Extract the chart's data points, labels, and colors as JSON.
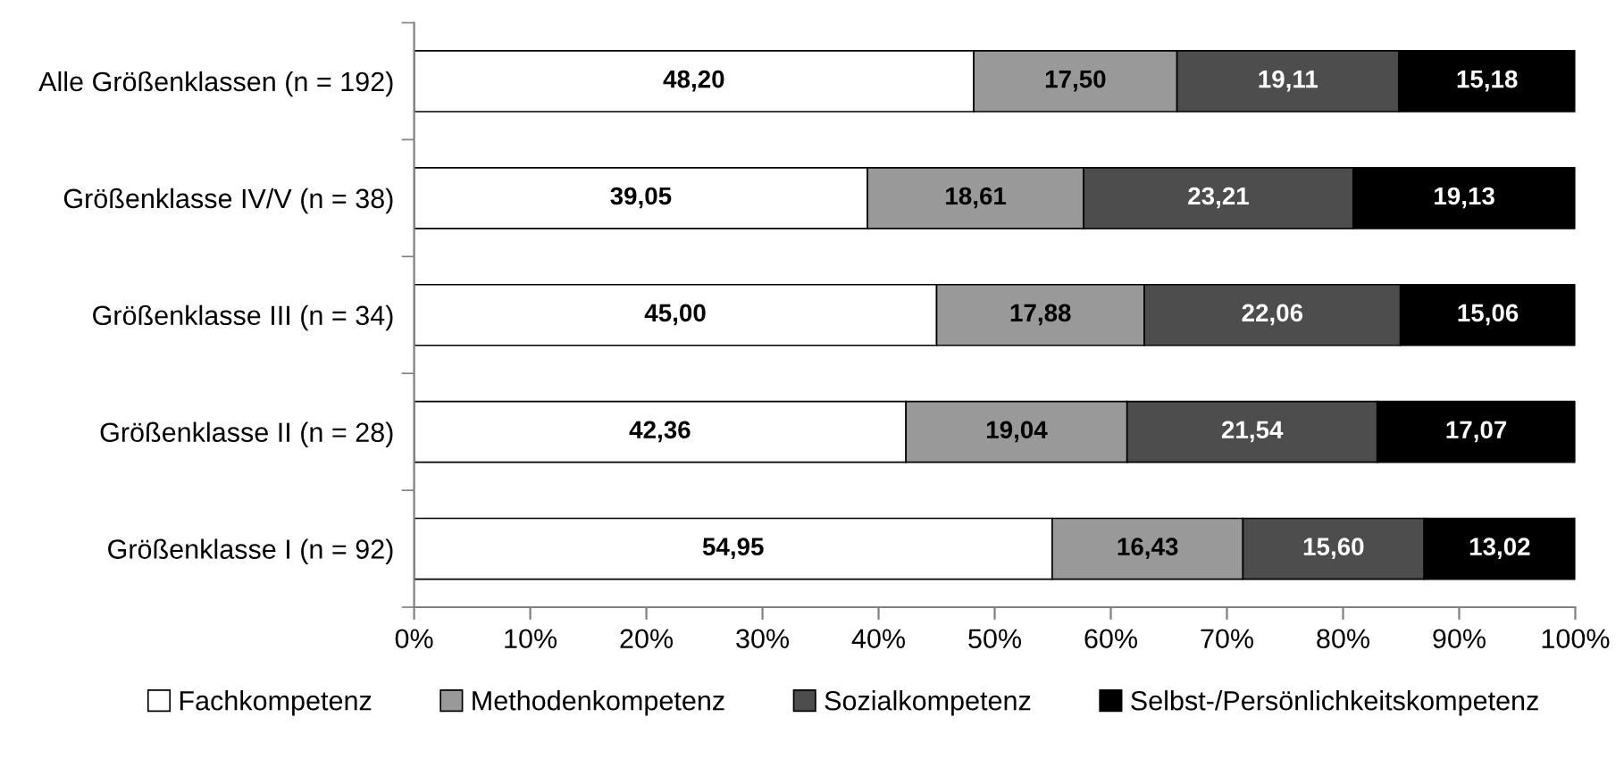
{
  "chart_data": {
    "type": "bar",
    "orientation": "horizontal",
    "stacked": true,
    "categories": [
      "Alle Größenklassen (n = 192)",
      "Größenklasse IV/V (n = 38)",
      "Größenklasse III (n = 34)",
      "Größenklasse II (n = 28)",
      "Größenklasse I (n = 92)"
    ],
    "series": [
      {
        "name": "Fachkompetenz",
        "color": "#ffffff",
        "values": [
          48.2,
          39.05,
          45.0,
          42.36,
          54.95
        ],
        "value_labels": [
          "48,20",
          "39,05",
          "45,00",
          "42,36",
          "54,95"
        ]
      },
      {
        "name": "Methodenkompetenz",
        "color": "#999999",
        "values": [
          17.5,
          18.61,
          17.88,
          19.04,
          16.43
        ],
        "value_labels": [
          "17,50",
          "18,61",
          "17,88",
          "19,04",
          "16,43"
        ]
      },
      {
        "name": "Sozialkompetenz",
        "color": "#4d4d4d",
        "values": [
          19.11,
          23.21,
          22.06,
          21.54,
          15.6
        ],
        "value_labels": [
          "19,11",
          "23,21",
          "22,06",
          "21,54",
          "15,60"
        ]
      },
      {
        "name": "Selbst-/Persönlichkeitskompetenz",
        "color": "#000000",
        "values": [
          15.18,
          19.13,
          15.06,
          17.07,
          13.02
        ],
        "value_labels": [
          "15,18",
          "19,13",
          "15,06",
          "17,07",
          "13,02"
        ]
      }
    ],
    "xlim": [
      0,
      100
    ],
    "xticks": [
      {
        "value": 0,
        "label": "0%"
      },
      {
        "value": 10,
        "label": "10%"
      },
      {
        "value": 20,
        "label": "20%"
      },
      {
        "value": 30,
        "label": "30%"
      },
      {
        "value": 40,
        "label": "40%"
      },
      {
        "value": 50,
        "label": "50%"
      },
      {
        "value": 60,
        "label": "60%"
      },
      {
        "value": 70,
        "label": "70%"
      },
      {
        "value": 80,
        "label": "80%"
      },
      {
        "value": 90,
        "label": "90%"
      },
      {
        "value": 100,
        "label": "100%"
      }
    ],
    "legend": "bottom",
    "grid": false
  }
}
